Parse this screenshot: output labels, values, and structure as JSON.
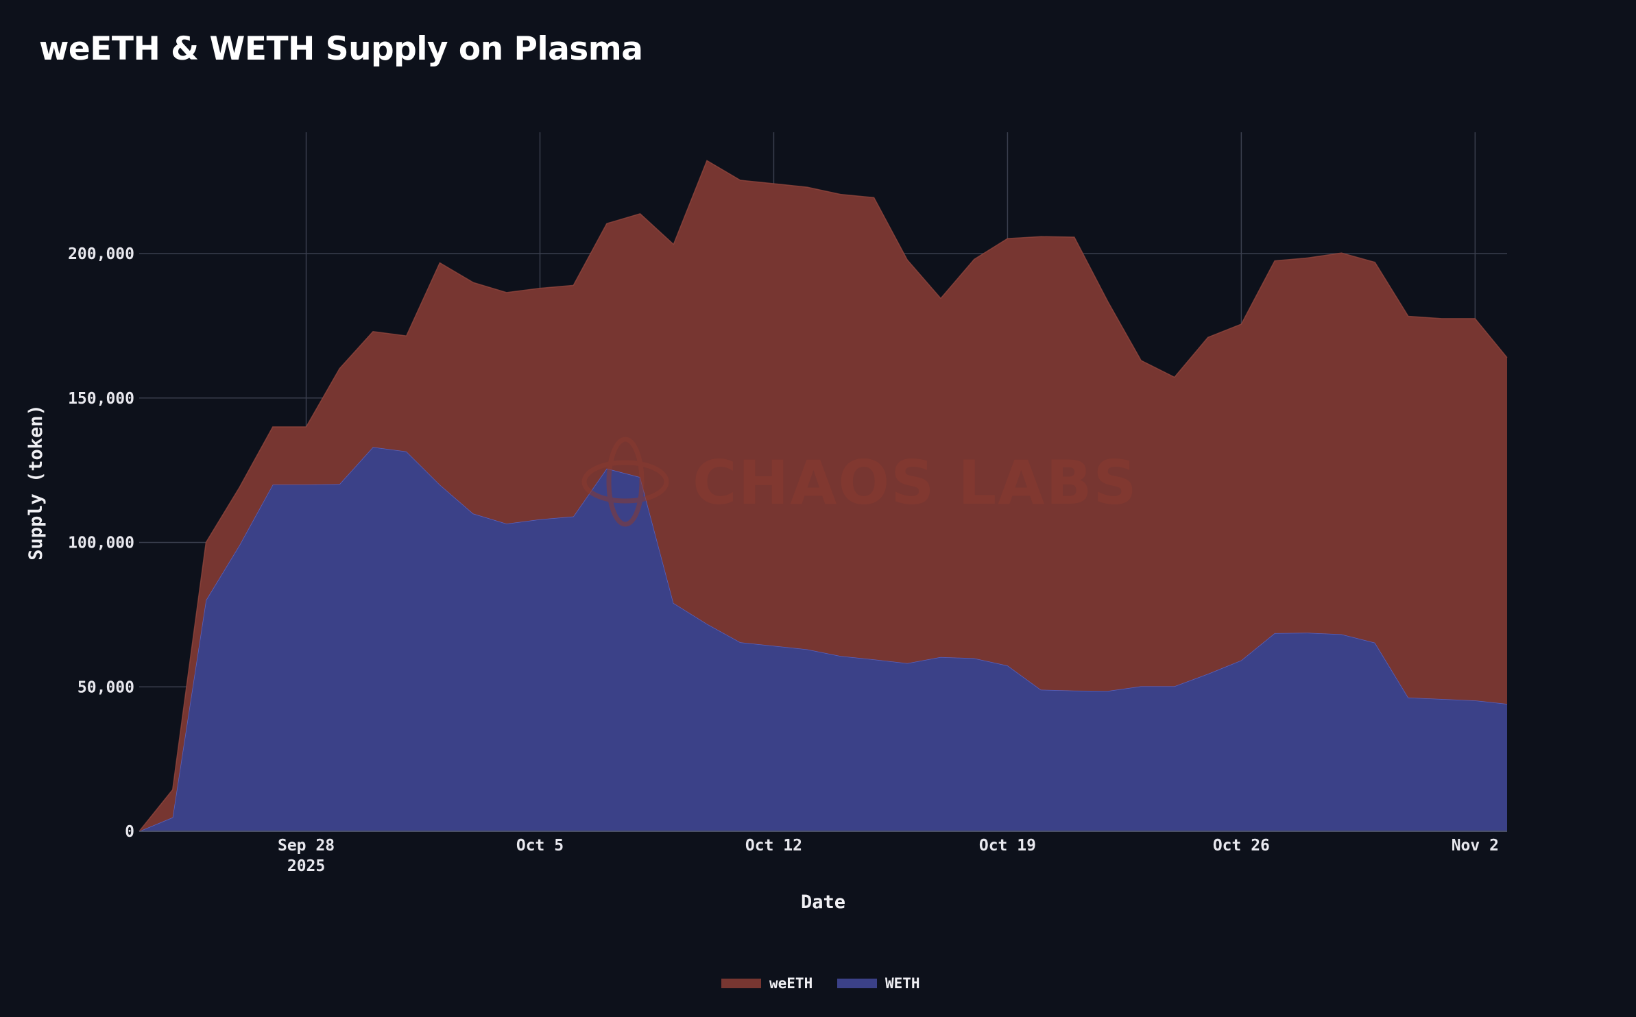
{
  "title": "weETH & WETH Supply on Plasma",
  "watermark": "CHAOS LABS",
  "chart_data": {
    "type": "area",
    "title": "weETH & WETH Supply on Plasma",
    "xlabel": "Date",
    "ylabel": "Supply (token)",
    "stacked": true,
    "grid": true,
    "legend_position": "bottom-center",
    "ylim": [
      0,
      242000
    ],
    "xlim": [
      "2025-09-23",
      "2025-11-02T23:00"
    ],
    "x_ticks": [
      {
        "date": "2025-09-28",
        "label": "Sep 28",
        "sublabel": "2025"
      },
      {
        "date": "2025-10-05",
        "label": "Oct 5",
        "sublabel": ""
      },
      {
        "date": "2025-10-12",
        "label": "Oct 12",
        "sublabel": ""
      },
      {
        "date": "2025-10-19",
        "label": "Oct 19",
        "sublabel": ""
      },
      {
        "date": "2025-10-26",
        "label": "Oct 26",
        "sublabel": ""
      },
      {
        "date": "2025-11-02",
        "label": "Nov 2",
        "sublabel": ""
      }
    ],
    "y_ticks": [
      {
        "value": 0,
        "label": "0"
      },
      {
        "value": 50000,
        "label": "50,000"
      },
      {
        "value": 100000,
        "label": "100,000"
      },
      {
        "value": 150000,
        "label": "150,000"
      },
      {
        "value": 200000,
        "label": "200,000"
      }
    ],
    "x": [
      "2025-09-23",
      "2025-09-24",
      "2025-09-25",
      "2025-09-26",
      "2025-09-27",
      "2025-09-28",
      "2025-09-29",
      "2025-09-30",
      "2025-10-01",
      "2025-10-02",
      "2025-10-03",
      "2025-10-04",
      "2025-10-05",
      "2025-10-06",
      "2025-10-07",
      "2025-10-08",
      "2025-10-09",
      "2025-10-10",
      "2025-10-11",
      "2025-10-12",
      "2025-10-13",
      "2025-10-14",
      "2025-10-15",
      "2025-10-16",
      "2025-10-17",
      "2025-10-18",
      "2025-10-19",
      "2025-10-20",
      "2025-10-21",
      "2025-10-22",
      "2025-10-23",
      "2025-10-24",
      "2025-10-25",
      "2025-10-26",
      "2025-10-27",
      "2025-10-28",
      "2025-10-29",
      "2025-10-30",
      "2025-10-31",
      "2025-11-01",
      "2025-11-02",
      "2025-11-02T23:00"
    ],
    "series": [
      {
        "name": "WETH",
        "color": "#3b4188",
        "stroke": "#6a72d8",
        "values": [
          0,
          4800,
          80000,
          99000,
          120000,
          120000,
          120200,
          133000,
          131500,
          120000,
          110000,
          106500,
          108000,
          109000,
          125600,
          122600,
          79000,
          71800,
          65400,
          64200,
          63000,
          60700,
          59500,
          58200,
          60300,
          59900,
          57400,
          49000,
          48700,
          48600,
          50200,
          50200,
          54500,
          59200,
          68600,
          68700,
          68200,
          65300,
          46300,
          45800,
          45300,
          44100
        ]
      },
      {
        "name": "weETH",
        "color": "#773631",
        "stroke": "#9a4a40",
        "values": [
          0,
          9600,
          20000,
          20000,
          20000,
          20000,
          40000,
          40000,
          40000,
          76800,
          80000,
          80000,
          80000,
          80000,
          84800,
          91200,
          124200,
          160400,
          160000,
          160000,
          160000,
          159800,
          159900,
          139600,
          124200,
          138100,
          147800,
          156900,
          157000,
          134900,
          112800,
          107000,
          116500,
          116400,
          128900,
          129800,
          132000,
          131700,
          132000,
          131700,
          132200,
          119900
        ]
      }
    ]
  }
}
